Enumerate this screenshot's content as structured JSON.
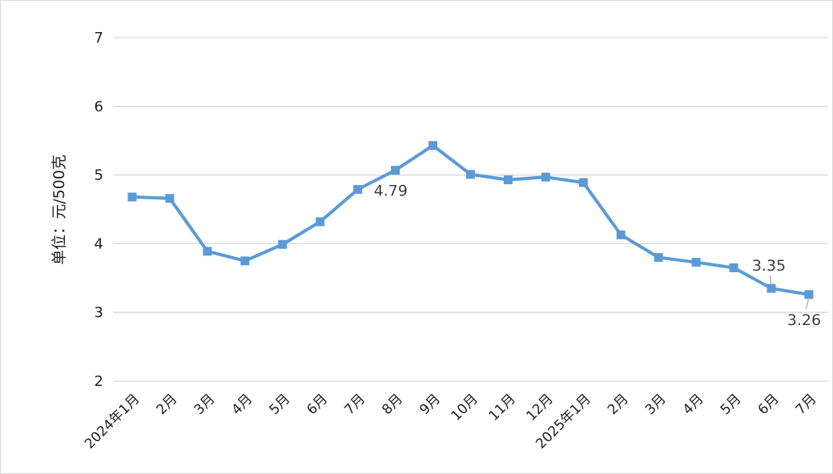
{
  "chart_data": {
    "type": "line",
    "ylabel": "单位：元/500克",
    "ylim": [
      2,
      7
    ],
    "yticks": [
      "2",
      "3",
      "4",
      "5",
      "6",
      "7"
    ],
    "grid": "horizontal",
    "categories": [
      "2024年1月",
      "2月",
      "3月",
      "4月",
      "5月",
      "6月",
      "7月",
      "8月",
      "9月",
      "10月",
      "11月",
      "12月",
      "2025年1月",
      "2月",
      "3月",
      "4月",
      "5月",
      "6月",
      "7月"
    ],
    "series": [
      {
        "values": [
          4.68,
          4.66,
          3.89,
          3.75,
          3.99,
          4.32,
          4.79,
          5.07,
          5.43,
          5.01,
          4.93,
          4.97,
          4.89,
          4.13,
          3.8,
          3.73,
          3.65,
          3.35,
          3.26
        ],
        "color": "#5b9bd5"
      }
    ],
    "annotations": [
      {
        "index": 6,
        "text": "4.79"
      },
      {
        "index": 17,
        "text": "3.35"
      },
      {
        "index": 18,
        "text": "3.26"
      }
    ]
  }
}
